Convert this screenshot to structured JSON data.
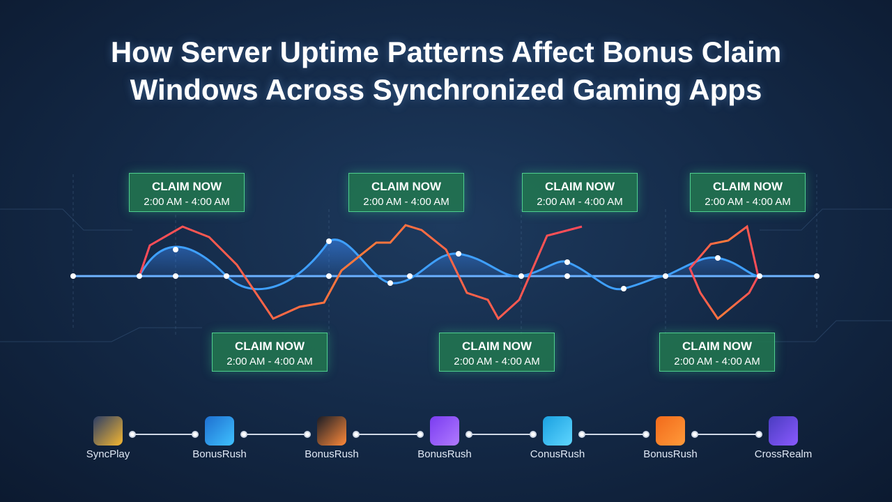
{
  "title": "How Server Uptime Patterns Affect Bonus Claim Windows Across Synchronized Gaming Apps",
  "claim_boxes": [
    {
      "label": "CLAIM NOW",
      "time": "2:00 AM - 4:00 AM"
    },
    {
      "label": "CLAIM NOW",
      "time": "2:00 AM - 4:00 AM"
    },
    {
      "label": "CLAIM NOW",
      "time": "2:00 AM - 4:00 AM"
    },
    {
      "label": "CLAIM NOW",
      "time": "2:00 AM - 4:00 AM"
    },
    {
      "label": "CLAIM NOW",
      "time": "2:00 AM - 4:00 AM"
    },
    {
      "label": "CLAIM NOW",
      "time": "2:00 AM - 4:00 AM"
    },
    {
      "label": "CLAIM NOW",
      "time": "2:00 AM - 4:00 AM"
    }
  ],
  "apps": [
    {
      "name": "SyncPlay"
    },
    {
      "name": "BonusRush"
    },
    {
      "name": "BonusRush"
    },
    {
      "name": "BonusRush"
    },
    {
      "name": "ConusRush"
    },
    {
      "name": "BonusRush"
    },
    {
      "name": "CrossRealm"
    }
  ]
}
